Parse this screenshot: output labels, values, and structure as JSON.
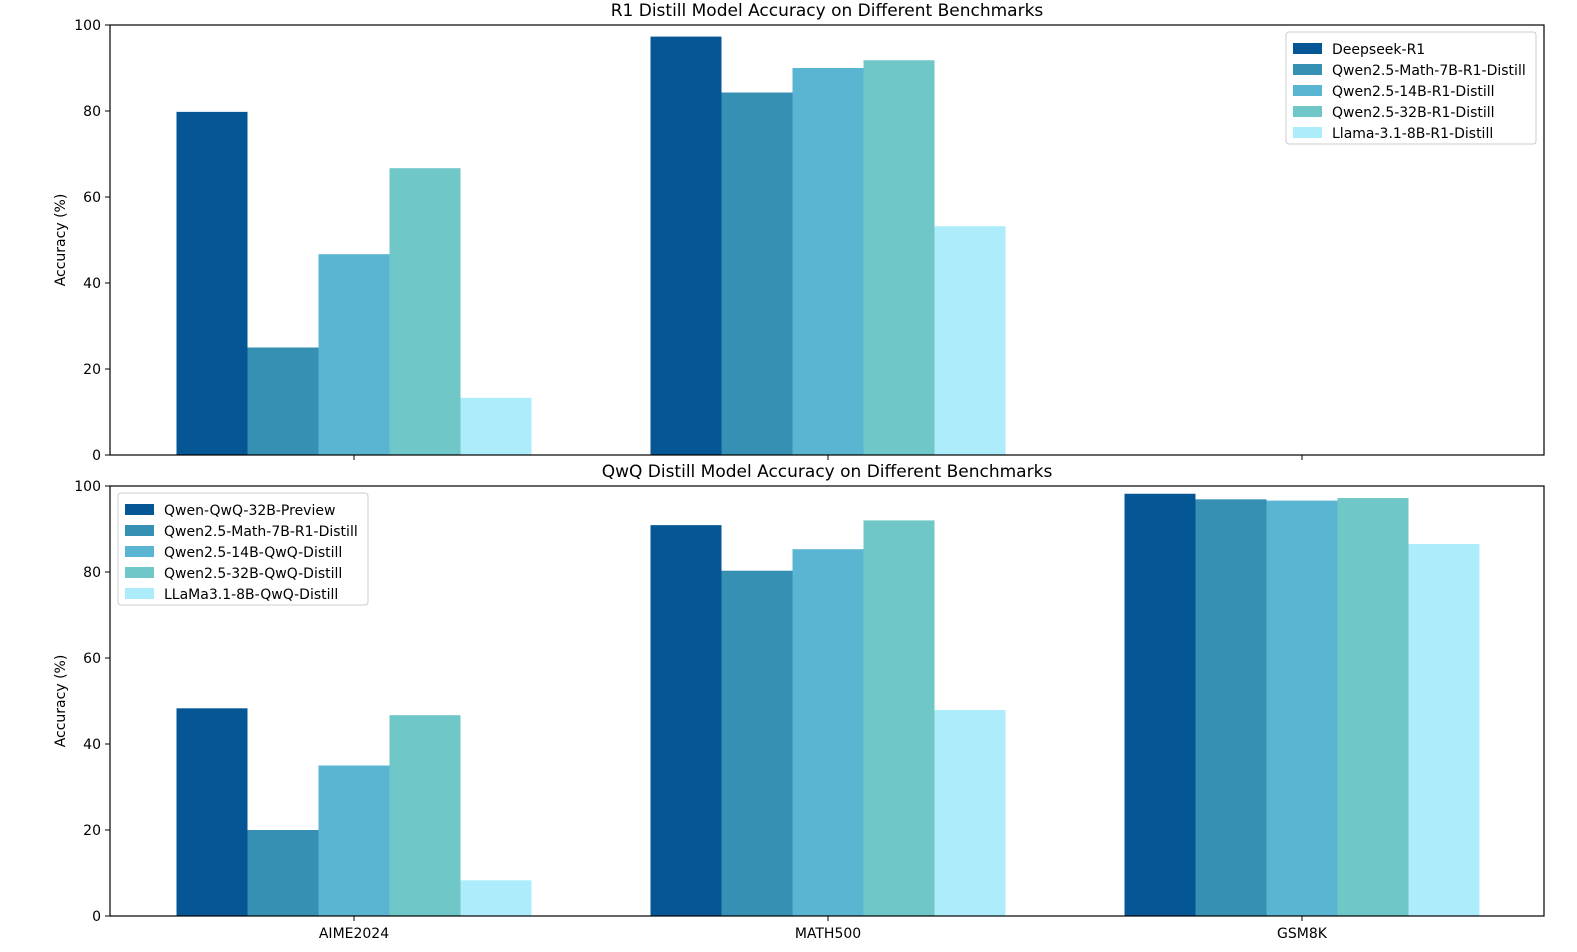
{
  "chart_data": [
    {
      "type": "bar",
      "title": "R1 Distill Model Accuracy on Different Benchmarks",
      "xlabel": "",
      "ylabel": "Accuracy (%)",
      "ylim": [
        0,
        100
      ],
      "yticks": [
        0,
        20,
        40,
        60,
        80,
        100
      ],
      "categories": [
        "AIME2024",
        "MATH500",
        "GSM8K"
      ],
      "show_xtick_labels": false,
      "legend_position": "top-right",
      "grid": false,
      "series": [
        {
          "name": "Deepseek-R1",
          "color": "#045694",
          "values": [
            79.8,
            97.3,
            null
          ]
        },
        {
          "name": "Qwen2.5-Math-7B-R1-Distill",
          "color": "#3590B3",
          "values": [
            25.0,
            84.3,
            null
          ]
        },
        {
          "name": "Qwen2.5-14B-R1-Distill",
          "color": "#59B5D1",
          "values": [
            46.7,
            90.0,
            null
          ]
        },
        {
          "name": "Qwen2.5-32B-R1-Distill",
          "color": "#6FC8C7",
          "values": [
            66.7,
            91.8,
            null
          ]
        },
        {
          "name": "Llama-3.1-8B-R1-Distill",
          "color": "#ADECFB",
          "values": [
            13.3,
            53.2,
            null
          ]
        }
      ]
    },
    {
      "type": "bar",
      "title": "QwQ Distill Model Accuracy on Different Benchmarks",
      "xlabel": "",
      "ylabel": "Accuracy (%)",
      "ylim": [
        0,
        100
      ],
      "yticks": [
        0,
        20,
        40,
        60,
        80,
        100
      ],
      "categories": [
        "AIME2024",
        "MATH500",
        "GSM8K"
      ],
      "show_xtick_labels": true,
      "legend_position": "top-left",
      "grid": false,
      "series": [
        {
          "name": "Qwen-QwQ-32B-Preview",
          "color": "#045694",
          "values": [
            48.3,
            90.9,
            98.2
          ]
        },
        {
          "name": "Qwen2.5-Math-7B-R1-Distill",
          "color": "#3590B3",
          "values": [
            20.0,
            80.3,
            96.9
          ]
        },
        {
          "name": "Qwen2.5-14B-QwQ-Distill",
          "color": "#59B5D1",
          "values": [
            35.0,
            85.3,
            96.6
          ]
        },
        {
          "name": "Qwen2.5-32B-QwQ-Distill",
          "color": "#6FC8C7",
          "values": [
            46.7,
            92.0,
            97.2
          ]
        },
        {
          "name": "LLaMa3.1-8B-QwQ-Distill",
          "color": "#ADECFB",
          "values": [
            8.3,
            47.9,
            86.5
          ]
        }
      ]
    }
  ]
}
